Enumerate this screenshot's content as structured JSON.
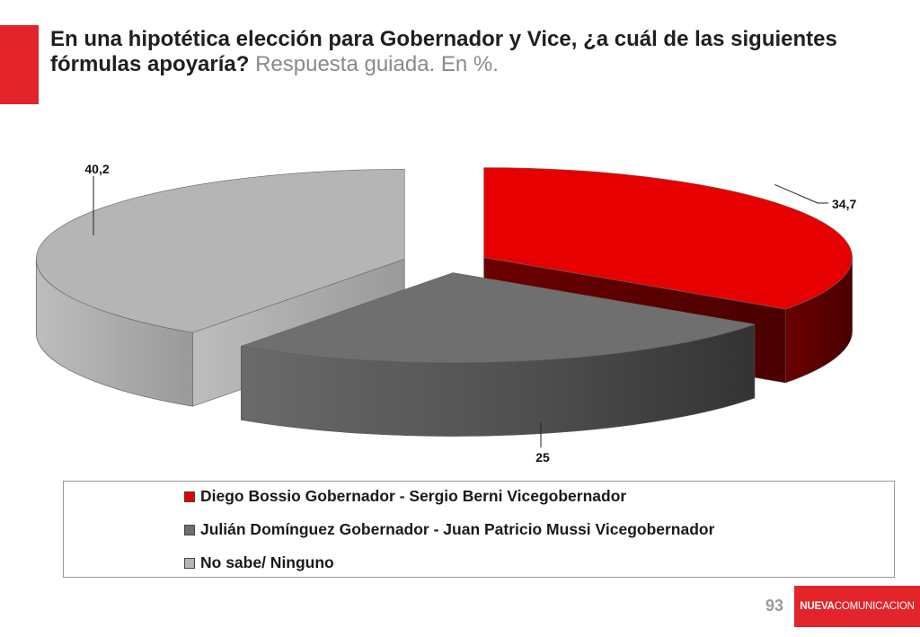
{
  "slide": {
    "title_main": "En una hipotética elección para Gobernador y Vice, ¿a cuál de las siguientes fórmulas apoyaría?",
    "title_sub": " Respuesta guiada. En %.",
    "page_number": "93",
    "brand_part1": "NUEVA",
    "brand_part2": "COMUNICACION"
  },
  "colors": {
    "accent": "#e3242b",
    "series": [
      "#e60000",
      "#6f6f6f",
      "#b5b5b5"
    ]
  },
  "chart_data": {
    "type": "pie",
    "title": "",
    "labels": [
      "Diego Bossio Gobernador - Sergio Berni Vicegobernador",
      "Julián Domínguez Gobernador - Juan Patricio Mussi Vicegobernador",
      "No sabe/ Ninguno"
    ],
    "values": [
      34.7,
      25,
      40.2
    ],
    "data_labels": [
      "34,7",
      "25",
      "40,2"
    ],
    "exploded": true,
    "style": "3d",
    "legend_position": "bottom"
  }
}
